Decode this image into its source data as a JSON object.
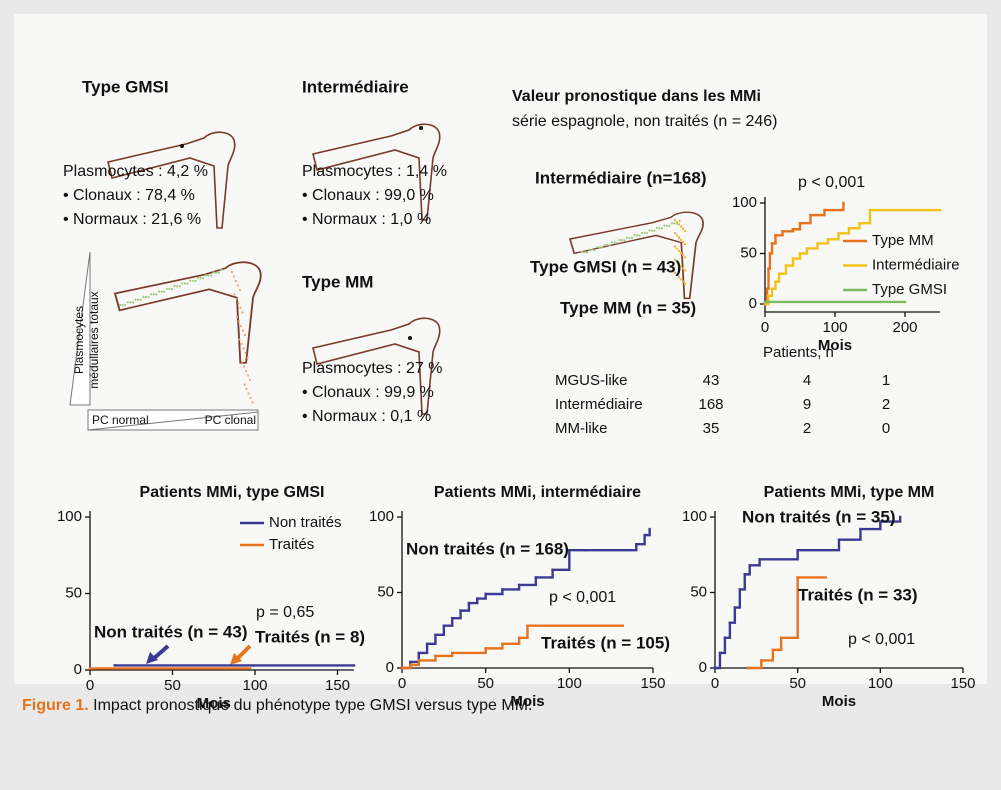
{
  "panels": {
    "phenotypes": [
      {
        "title": "Type GMSI",
        "color": "#7dbb5e",
        "lines": [
          "Plasmocytes : 4,2 %",
          "• Clonaux : 78,4 %",
          "• Normaux : 21,6 %"
        ]
      },
      {
        "title": "Intermédiaire",
        "color": "#f2c21a",
        "lines": [
          "Plasmocytes : 1,4 %",
          "• Clonaux : 99,0 %",
          "• Normaux : 1,0 %"
        ]
      },
      {
        "title": "Type MM",
        "color": "#e8731e",
        "lines": [
          "Plasmocytes : 27 %",
          "• Clonaux : 99,9 %",
          "• Normaux : 0,1 %"
        ]
      }
    ],
    "scatter_axes": {
      "y_label": [
        "Plasmocytes",
        "médullaires totaux"
      ],
      "x_left": "PC normal",
      "x_right": "PC clonal"
    },
    "prognosis": {
      "title": "Valeur pronostique dans les MMi",
      "subtitle": "série espagnole, non traités (n = 246)",
      "groups": [
        {
          "text": "Intermédiaire (n=168)",
          "color": "#f2c21a"
        },
        {
          "text": "Type GMSI (n = 43)",
          "color": "#7dbb5e"
        },
        {
          "text": "Type MM (n = 35)",
          "color": "#e8731e"
        }
      ]
    },
    "risk_table": {
      "title": "Patients, n",
      "rows": [
        {
          "label": "MGUS-like",
          "color": "#7dbb5e",
          "counts": [
            43,
            4,
            1
          ]
        },
        {
          "label": "Intermédiaire",
          "color": "#f2c21a",
          "counts": [
            168,
            9,
            2
          ]
        },
        {
          "label": "MM-like",
          "color": "#e8731e",
          "counts": [
            35,
            2,
            0
          ]
        }
      ]
    }
  },
  "chart_data": [
    {
      "type": "step",
      "xlabel": "Mois",
      "xlim": [
        0,
        250
      ],
      "xticks": [
        0,
        100,
        200
      ],
      "ylim": [
        0,
        100
      ],
      "yticks": [
        0,
        50,
        100
      ],
      "legend": "right",
      "annotations": [
        "p < 0,001"
      ],
      "series": [
        {
          "name": "Type MM",
          "color": "#e8731e",
          "x": [
            0,
            3,
            5,
            7,
            10,
            15,
            25,
            40,
            50,
            65,
            85,
            107,
            112
          ],
          "values": [
            0,
            15,
            35,
            50,
            60,
            68,
            72,
            74,
            80,
            88,
            93,
            93,
            100
          ]
        },
        {
          "name": "Intermédiaire",
          "color": "#f2c21a",
          "x": [
            0,
            5,
            10,
            15,
            20,
            30,
            40,
            50,
            60,
            75,
            90,
            105,
            120,
            135,
            150,
            250
          ],
          "values": [
            0,
            8,
            15,
            22,
            30,
            38,
            45,
            50,
            55,
            60,
            64,
            70,
            75,
            80,
            93,
            93
          ]
        },
        {
          "name": "Type GMSI",
          "color": "#7dbb5e",
          "x": [
            0,
            200
          ],
          "values": [
            2,
            2
          ]
        }
      ]
    },
    {
      "type": "step",
      "title": "Patients MMi, type GMSI",
      "xlabel": "Mois",
      "xlim": [
        0,
        160
      ],
      "xticks": [
        0,
        50,
        100,
        150
      ],
      "ylim": [
        0,
        100
      ],
      "yticks": [
        0,
        50,
        100
      ],
      "legend": "upper right",
      "annotations": [
        "p = 0,65",
        "Non traités (n = 43)",
        "Traités (n = 8)"
      ],
      "series": [
        {
          "name": "Non traités",
          "color": "#3c3a94",
          "x": [
            15,
            160
          ],
          "values": [
            3,
            3
          ]
        },
        {
          "name": "Traités",
          "color": "#e8731e",
          "x": [
            0,
            97
          ],
          "values": [
            1,
            1
          ]
        }
      ]
    },
    {
      "type": "step",
      "title": "Patients MMi, intermédiaire",
      "xlabel": "Mois",
      "xlim": [
        0,
        150
      ],
      "xticks": [
        0,
        50,
        100,
        150
      ],
      "ylim": [
        0,
        100
      ],
      "yticks": [
        0,
        50,
        100
      ],
      "annotations": [
        "Non traités (n = 168)",
        "p < 0,001",
        "Traités (n = 105)"
      ],
      "series": [
        {
          "name": "Non traités",
          "color": "#3c3a94",
          "x": [
            0,
            5,
            10,
            15,
            20,
            25,
            30,
            35,
            40,
            45,
            50,
            60,
            70,
            80,
            90,
            100,
            110,
            140,
            145,
            148
          ],
          "values": [
            0,
            4,
            10,
            16,
            22,
            28,
            33,
            38,
            43,
            46,
            49,
            52,
            55,
            60,
            65,
            78,
            78,
            82,
            88,
            92
          ]
        },
        {
          "name": "Traités",
          "color": "#e8731e",
          "x": [
            0,
            5,
            10,
            20,
            30,
            50,
            60,
            70,
            75,
            132
          ],
          "values": [
            0,
            2,
            5,
            8,
            10,
            13,
            16,
            20,
            28,
            28
          ]
        }
      ]
    },
    {
      "type": "step",
      "title": "Patients MMi, type MM",
      "xlabel": "Mois",
      "xlim": [
        0,
        150
      ],
      "xticks": [
        0,
        50,
        100,
        150
      ],
      "ylim": [
        0,
        100
      ],
      "yticks": [
        0,
        50,
        100
      ],
      "annotations": [
        "Non traités (n = 35)",
        "Traités (n = 33)",
        "p < 0,001"
      ],
      "series": [
        {
          "name": "Non traités",
          "color": "#3c3a94",
          "x": [
            0,
            3,
            6,
            9,
            12,
            15,
            18,
            21,
            27,
            50,
            75,
            88,
            100,
            112
          ],
          "values": [
            0,
            10,
            20,
            30,
            40,
            52,
            62,
            68,
            72,
            78,
            85,
            92,
            97,
            100
          ]
        },
        {
          "name": "Traités",
          "color": "#e8731e",
          "x": [
            20,
            28,
            35,
            40,
            50,
            67
          ],
          "values": [
            0,
            5,
            12,
            20,
            60,
            60
          ]
        }
      ]
    }
  ],
  "caption": {
    "label": "Figure 1.",
    "text": "Impact pronostique du phénotype type GMSI versus type MM."
  }
}
